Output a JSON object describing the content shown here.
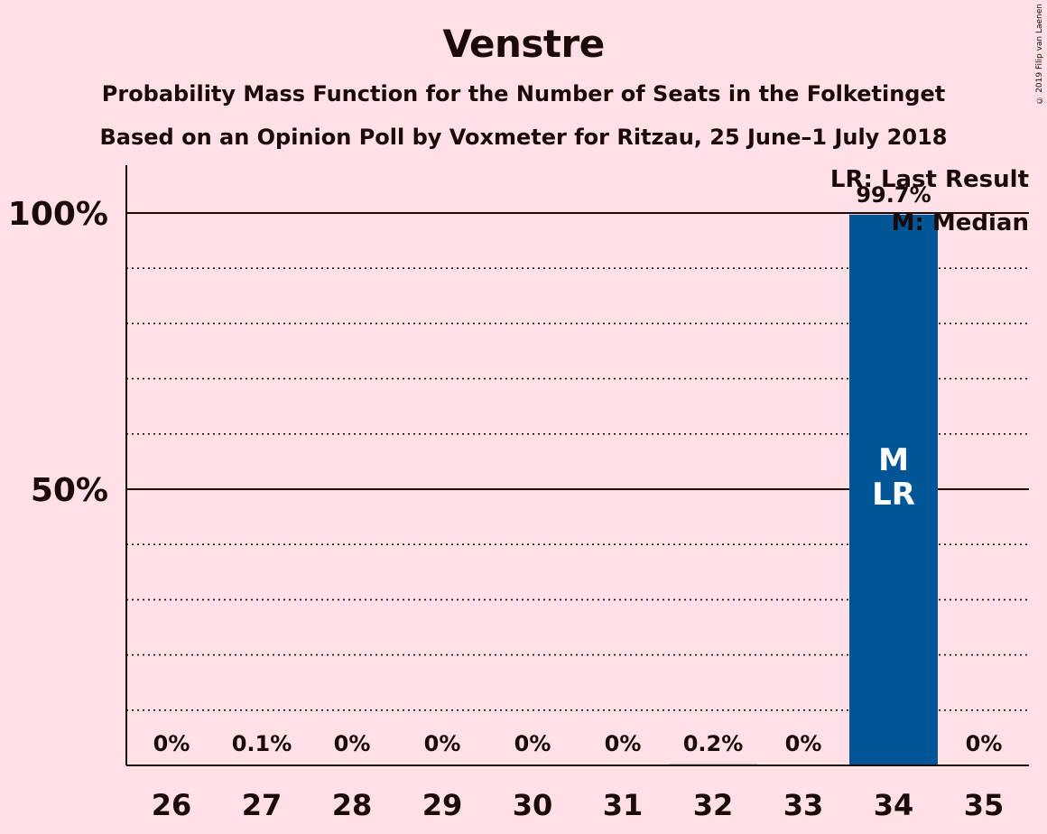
{
  "title": "Venstre",
  "subtitle": "Probability Mass Function for the Number of Seats in the Folketinget",
  "subtitle2": "Based on an Opinion Poll by Voxmeter for Ritzau, 25 June–1 July 2018",
  "copyright": "© 2019 Filip van Laenen",
  "legend": {
    "lr": "LR: Last Result",
    "m": "M: Median"
  },
  "colors": {
    "background": "#ffe0e6",
    "bar": "#005596"
  },
  "chart_data": {
    "type": "bar",
    "categories": [
      "26",
      "27",
      "28",
      "29",
      "30",
      "31",
      "32",
      "33",
      "34",
      "35"
    ],
    "values": [
      0,
      0.1,
      0,
      0,
      0,
      0,
      0.2,
      0,
      99.7,
      0
    ],
    "value_labels": [
      "0%",
      "0.1%",
      "0%",
      "0%",
      "0%",
      "0%",
      "0.2%",
      "0%",
      "99.7%",
      "0%"
    ],
    "ylim": [
      0,
      100
    ],
    "yticks": [
      {
        "value": 50,
        "label": "50%"
      },
      {
        "value": 100,
        "label": "100%"
      }
    ],
    "grid_dotted_every": 10,
    "bar_markers": {
      "34": [
        "M",
        "LR"
      ]
    },
    "legend_position": "top-right"
  }
}
